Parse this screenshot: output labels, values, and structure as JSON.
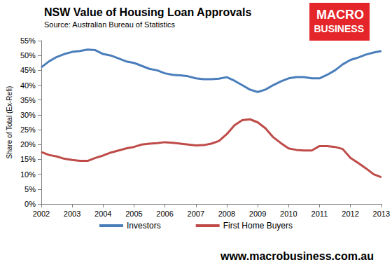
{
  "chart_data": {
    "type": "line",
    "title": "NSW Value of Housing Loan Approvals",
    "subtitle": "Source: Australian Bureau of Statistics",
    "y_label": "Share of Total (Ex-Refi)",
    "logo": [
      "MACRO",
      "BUSINESS"
    ],
    "footer": "www.macrobusiness.com.au",
    "x": [
      2002,
      2002.25,
      2002.5,
      2002.75,
      2003,
      2003.25,
      2003.5,
      2003.75,
      2004,
      2004.25,
      2004.5,
      2004.75,
      2005,
      2005.25,
      2005.5,
      2005.75,
      2006,
      2006.25,
      2006.5,
      2006.75,
      2007,
      2007.25,
      2007.5,
      2007.75,
      2008,
      2008.25,
      2008.5,
      2008.75,
      2009,
      2009.25,
      2009.5,
      2009.75,
      2010,
      2010.25,
      2010.5,
      2010.75,
      2011,
      2011.25,
      2011.5,
      2011.75,
      2012,
      2012.25,
      2012.5,
      2012.75,
      2013
    ],
    "series": [
      {
        "name": "Investors",
        "color": "#4a7ebb",
        "values": [
          46,
          48,
          49.5,
          50.5,
          51.2,
          51.5,
          52,
          51.8,
          50.5,
          50,
          49,
          48,
          47.5,
          46.5,
          45.5,
          45,
          44,
          43.5,
          43.3,
          43,
          42.3,
          42,
          42,
          42.2,
          42.7,
          41.5,
          40,
          38.5,
          37.7,
          38.5,
          40,
          41.3,
          42.3,
          42.7,
          42.7,
          42.3,
          42.3,
          43.5,
          45,
          47,
          48.5,
          49.3,
          50.3,
          51,
          51.5
        ]
      },
      {
        "name": "First Home Buyers",
        "color": "#be4b48",
        "values": [
          17.5,
          16.5,
          16,
          15.2,
          14.8,
          14.5,
          14.5,
          15.5,
          16.3,
          17.3,
          18,
          18.7,
          19.2,
          20,
          20.3,
          20.5,
          20.8,
          20.6,
          20.3,
          20,
          19.7,
          19.8,
          20.3,
          21.2,
          23.5,
          26.5,
          28.2,
          28.5,
          27.5,
          25.5,
          22.5,
          20.5,
          18.7,
          18.2,
          18,
          18,
          19.5,
          19.5,
          19.2,
          18.5,
          15.5,
          13.8,
          12,
          10,
          9
        ]
      }
    ],
    "xlim": [
      2002,
      2013
    ],
    "xticks": [
      2002,
      2003,
      2004,
      2005,
      2006,
      2007,
      2008,
      2009,
      2010,
      2011,
      2012,
      2013
    ],
    "ylim": [
      0,
      55
    ],
    "yticks": [
      {
        "value": 0,
        "label": "0%"
      },
      {
        "value": 5,
        "label": "5%"
      },
      {
        "value": 10,
        "label": "10%"
      },
      {
        "value": 15,
        "label": "15%"
      },
      {
        "value": 20,
        "label": "20%"
      },
      {
        "value": 25,
        "label": "25%"
      },
      {
        "value": 30,
        "label": "30%"
      },
      {
        "value": 35,
        "label": "35%"
      },
      {
        "value": 40,
        "label": "40%"
      },
      {
        "value": 45,
        "label": "45%"
      },
      {
        "value": 50,
        "label": "50%"
      },
      {
        "value": 55,
        "label": "55%"
      }
    ],
    "grid": false,
    "legend": "bottom"
  }
}
